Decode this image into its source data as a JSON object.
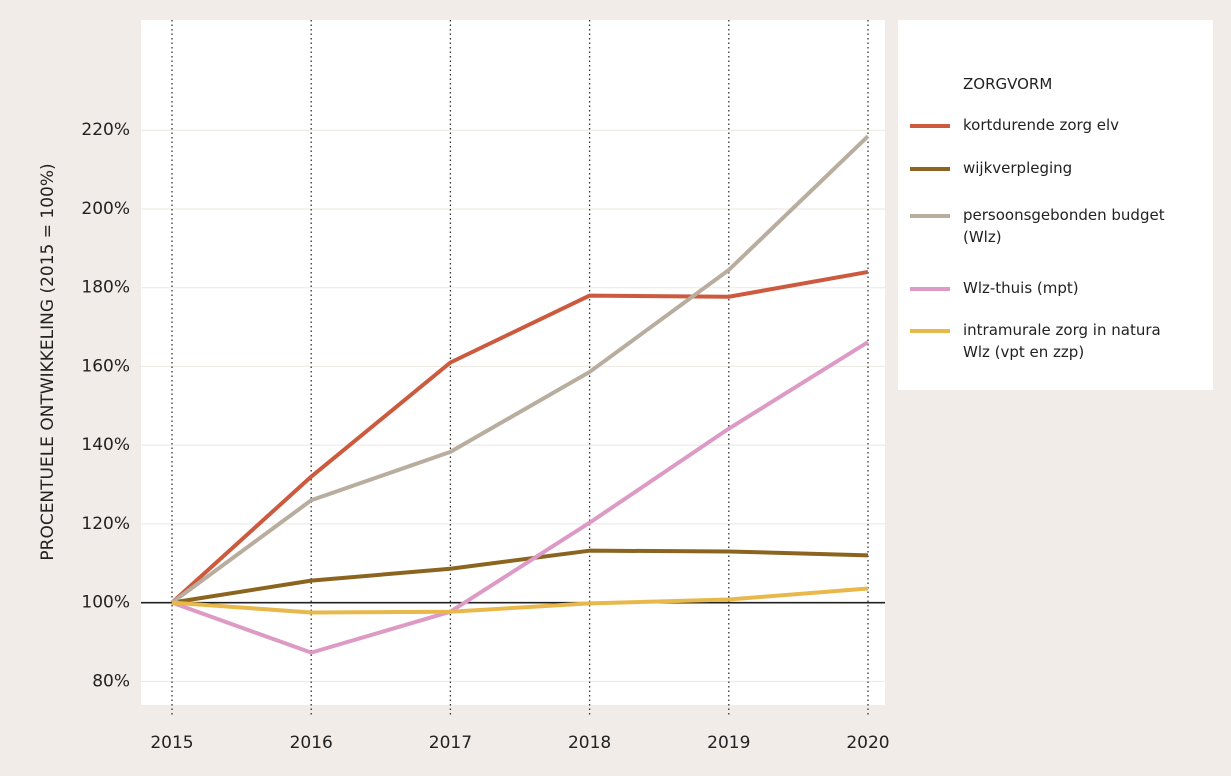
{
  "chart_data": {
    "type": "line",
    "y_label": "PROCENTUELE ONTWIKKELING (2015 = 100%)",
    "legend_title": "ZORGVORM",
    "legend": "right",
    "grid": true,
    "categories": [
      "2015",
      "2016",
      "2017",
      "2018",
      "2019",
      "2020"
    ],
    "ylim": [
      74,
      248
    ],
    "yticks": [
      {
        "value": 80,
        "label": "80%"
      },
      {
        "value": 100,
        "label": "100%"
      },
      {
        "value": 120,
        "label": "120%"
      },
      {
        "value": 140,
        "label": "140%"
      },
      {
        "value": 160,
        "label": "160%"
      },
      {
        "value": 180,
        "label": "180%"
      },
      {
        "value": 200,
        "label": "200%"
      },
      {
        "value": 220,
        "label": "220%"
      }
    ],
    "reference_line": 100,
    "series": [
      {
        "name": "kortdurende zorg elv",
        "color": "#cc5a3e",
        "values": [
          100,
          132,
          161,
          178,
          177.7,
          184
        ]
      },
      {
        "name": "wijkverpleging",
        "color": "#8b6420",
        "values": [
          100,
          105.6,
          108.6,
          113.2,
          113,
          112
        ]
      },
      {
        "name": "persoonsgebonden budget (Wlz)",
        "color": "#b8ad9e",
        "values": [
          100,
          126,
          138.3,
          158.6,
          184.5,
          218.5
        ]
      },
      {
        "name": "Wlz-thuis (mpt)",
        "color": "#dd9ac4",
        "values": [
          100,
          87.3,
          97.7,
          120.3,
          144.2,
          166.2
        ]
      },
      {
        "name": "intramurale zorg in natura Wlz (vpt en zzp)",
        "color": "#e8b84a",
        "values": [
          100,
          97.5,
          97.7,
          99.8,
          100.8,
          103.6
        ]
      }
    ]
  }
}
